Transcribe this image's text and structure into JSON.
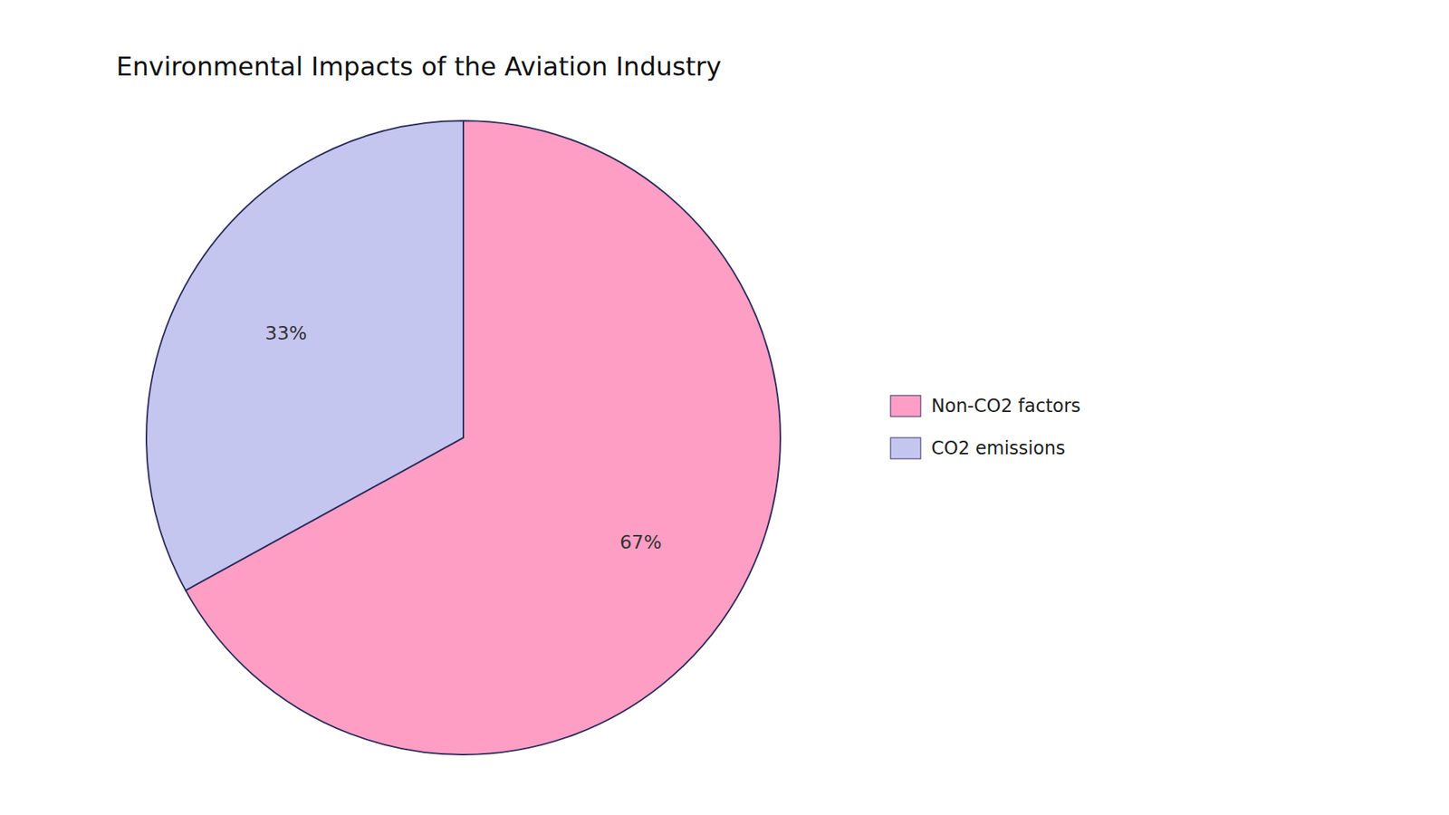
{
  "chart_data": {
    "type": "pie",
    "title": "Environmental Impacts of the Aviation Industry",
    "categories": [
      "Non-CO2 factors",
      "CO2 emissions"
    ],
    "values": [
      67,
      33
    ],
    "value_labels": [
      "67%",
      "33%"
    ],
    "colors": [
      "#FF9EC4",
      "#C5C6F0"
    ],
    "data_labels": true,
    "legend": "right"
  }
}
